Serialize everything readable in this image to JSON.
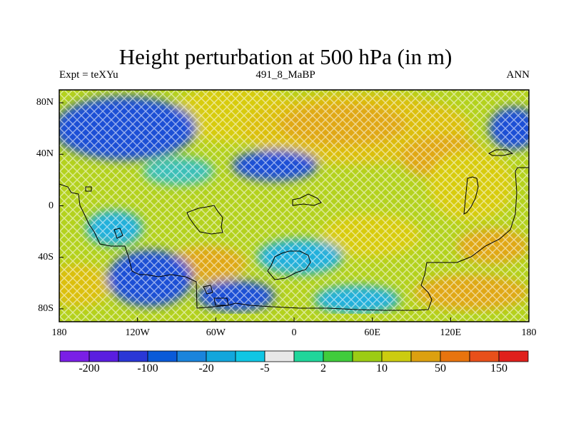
{
  "title": "Height perturbation at 500 hPa (in m)",
  "left_subtitle": "Expt = teXYu",
  "center_subtitle": "491_8_MaBP",
  "right_subtitle": "ANN",
  "map": {
    "lon_ticks": [
      "180",
      "120W",
      "60W",
      "0",
      "60E",
      "120E",
      "180"
    ],
    "lat_ticks": [
      "80N",
      "40N",
      "0",
      "40S",
      "80S"
    ],
    "lon_range": [
      -180,
      180
    ],
    "lat_range": [
      -90,
      90
    ],
    "fill_style": "cross-hatched raster with black paleo-coastline contour"
  },
  "colorbar": {
    "colors": [
      "#7a1fe6",
      "#5a1ee0",
      "#2a37d6",
      "#0a5ad8",
      "#1a84dc",
      "#12a6dc",
      "#10c6e4",
      "#e8e8e8",
      "#20d69a",
      "#40cc3c",
      "#9ccc14",
      "#cccc10",
      "#dca010",
      "#e8740e",
      "#e8501a",
      "#e0201c"
    ],
    "labels": [
      "-200",
      "-100",
      "-20",
      "-5",
      "2",
      "10",
      "50",
      "150"
    ]
  }
}
